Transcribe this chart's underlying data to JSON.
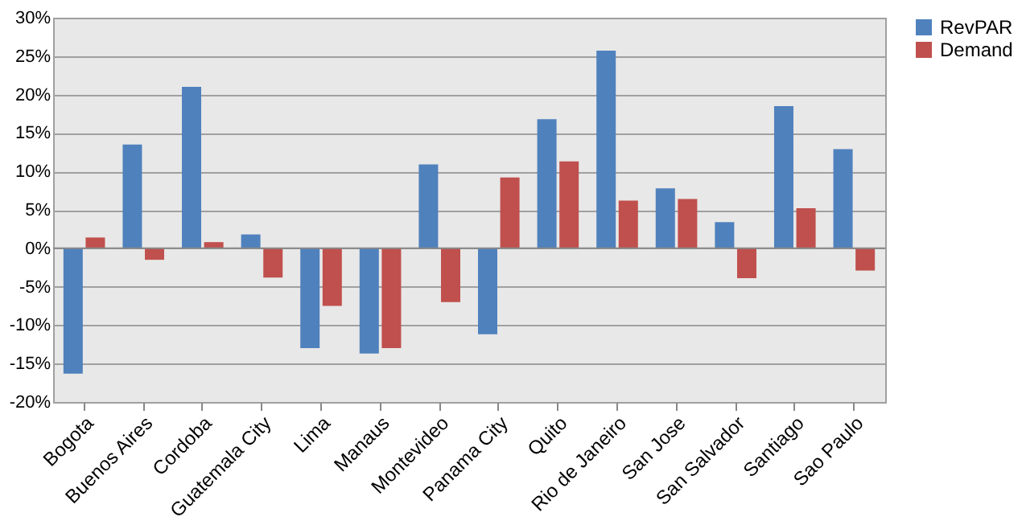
{
  "chart_data": {
    "type": "bar",
    "categories": [
      "Bogota",
      "Buenos Aires",
      "Cordoba",
      "Guatemala City",
      "Lima",
      "Manaus",
      "Montevideo",
      "Panama City",
      "Quito",
      "Rio de Janeiro",
      "San Jose",
      "San Salvador",
      "Santiago",
      "Sao Paulo"
    ],
    "series": [
      {
        "name": "RevPAR",
        "color": "#4f81bd",
        "values": [
          -16.3,
          13.5,
          21,
          1.8,
          -13,
          -13.7,
          10.9,
          -11.2,
          16.8,
          25.7,
          7.8,
          3.4,
          18.5,
          12.9
        ]
      },
      {
        "name": "Demand",
        "color": "#c0504d",
        "values": [
          1.4,
          -1.5,
          0.8,
          -3.8,
          -7.5,
          -13,
          -7,
          9.2,
          11.3,
          6.2,
          6.4,
          -3.9,
          5.2,
          -2.9
        ]
      }
    ],
    "ylim": [
      -20,
      30
    ],
    "yticks": [
      {
        "value": -20,
        "label": "-20%"
      },
      {
        "value": -15,
        "label": "-15%"
      },
      {
        "value": -10,
        "label": "-10%"
      },
      {
        "value": -5,
        "label": "-5%"
      },
      {
        "value": 0,
        "label": "0%"
      },
      {
        "value": 5,
        "label": "5%"
      },
      {
        "value": 10,
        "label": "10%"
      },
      {
        "value": 15,
        "label": "15%"
      },
      {
        "value": 20,
        "label": "20%"
      },
      {
        "value": 25,
        "label": "25%"
      },
      {
        "value": 30,
        "label": "30%"
      }
    ],
    "grid": "y",
    "legend": "right"
  }
}
